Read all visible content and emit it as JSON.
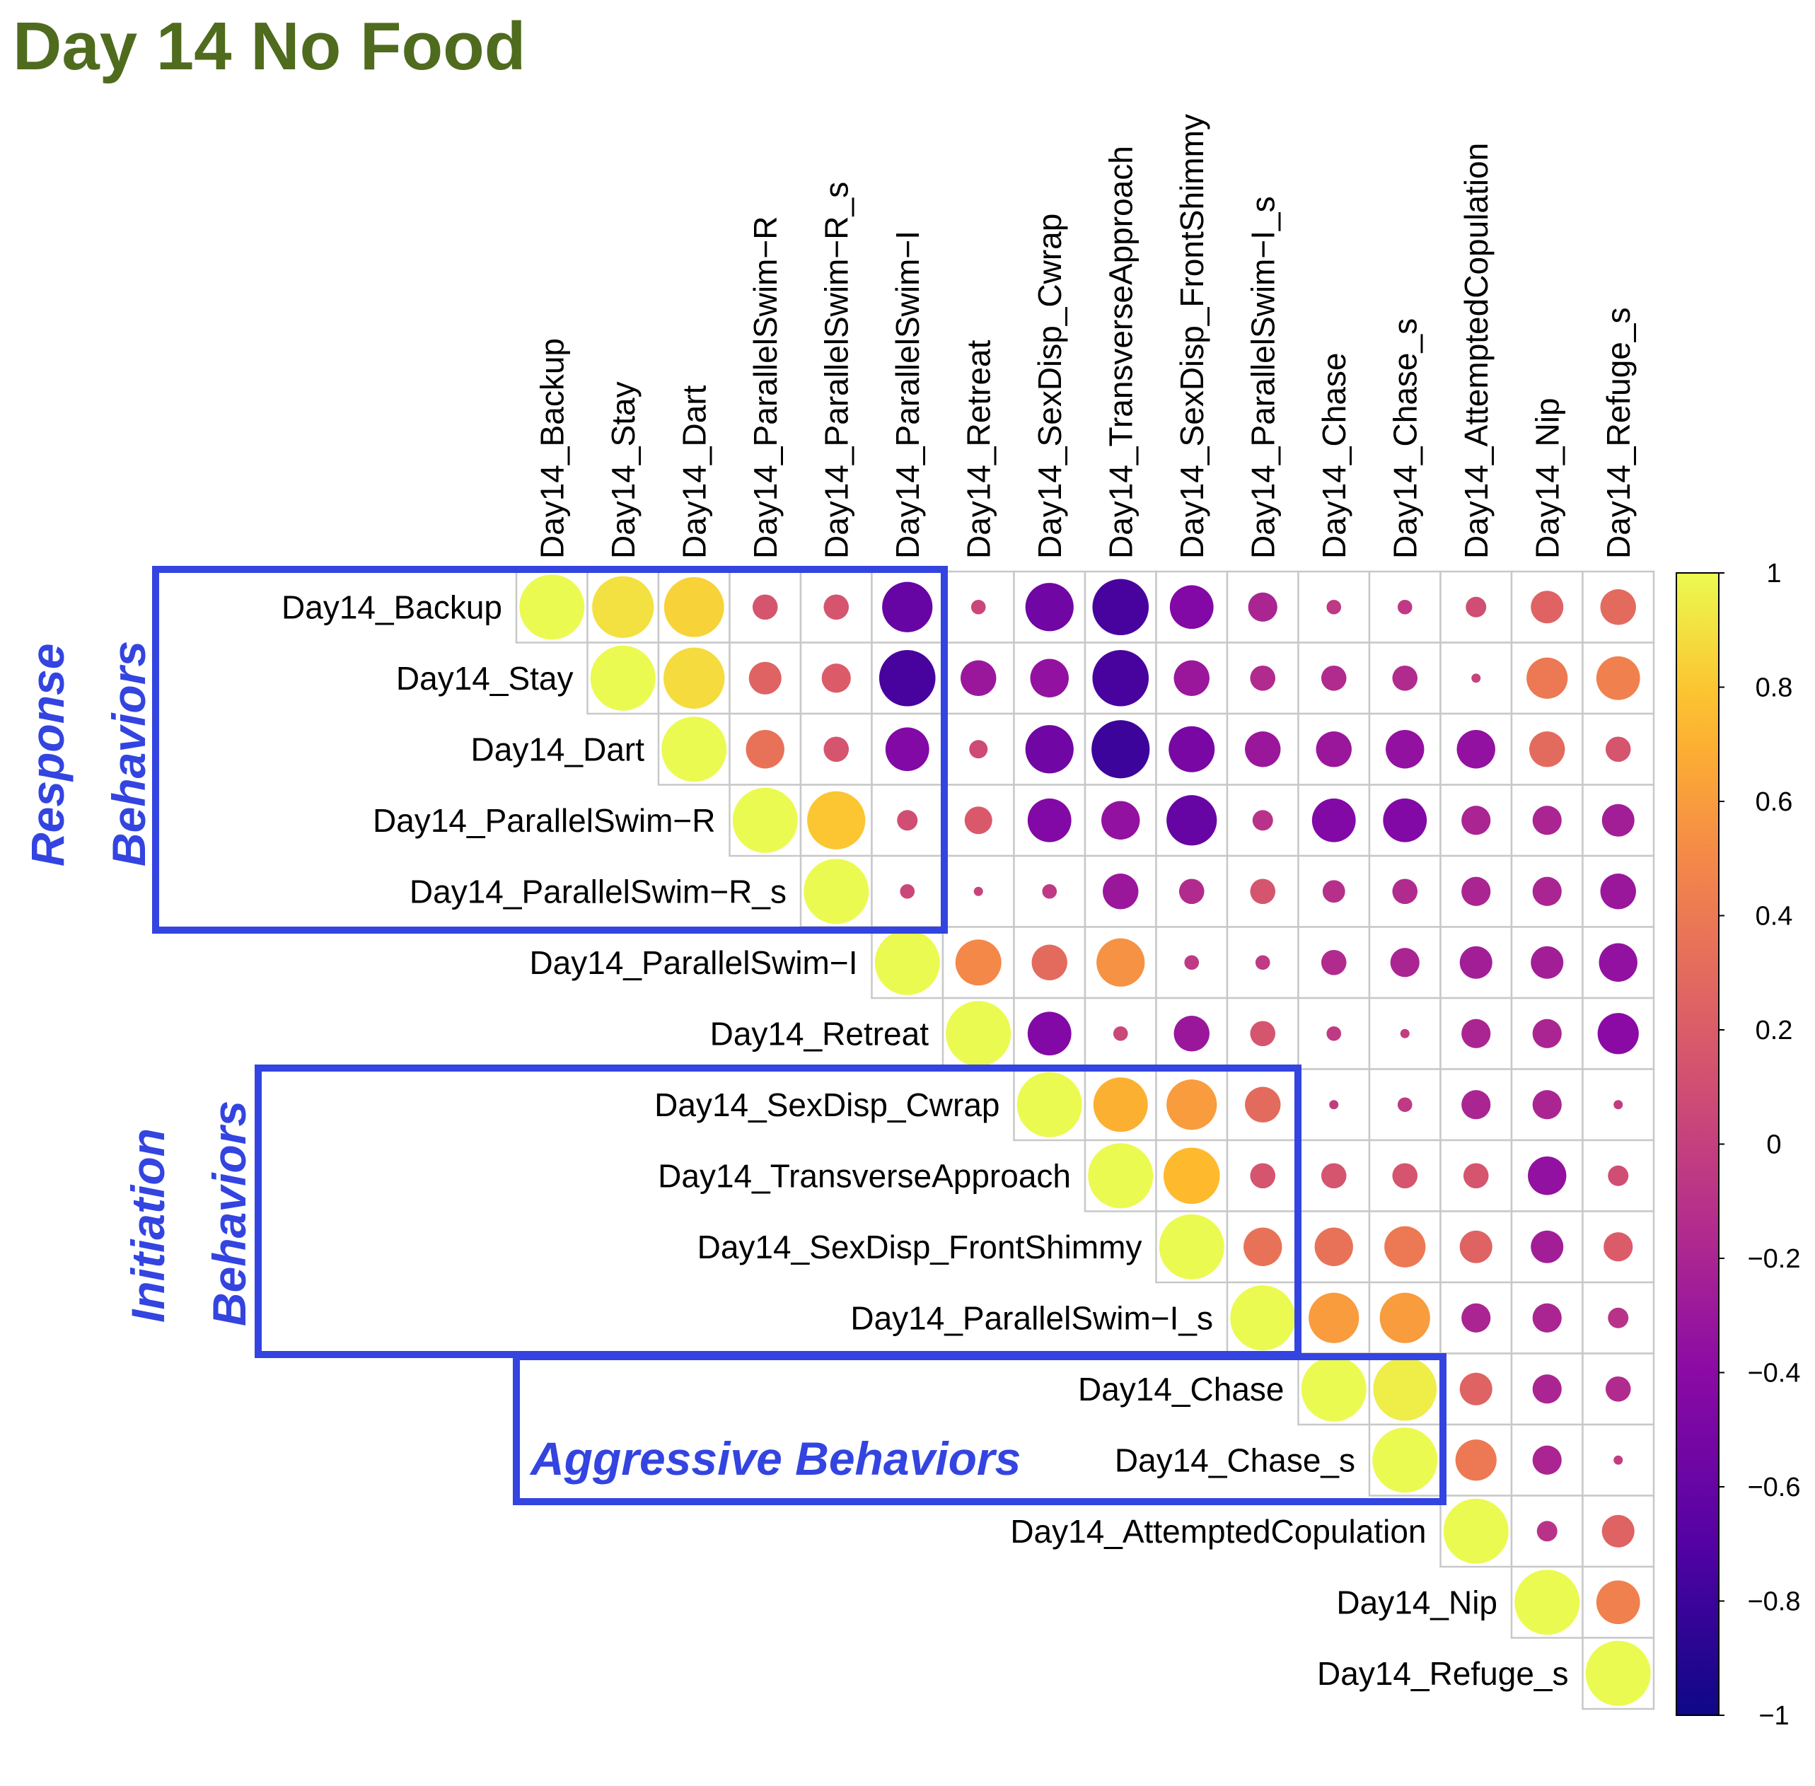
{
  "title": "Day 14 No Food",
  "chart_data": {
    "type": "heatmap",
    "subtype": "corrplot-upper-circles",
    "variables": [
      "Day14_Backup",
      "Day14_Stay",
      "Day14_Dart",
      "Day14_ParallelSwim−R",
      "Day14_ParallelSwim−R_s",
      "Day14_ParallelSwim−I",
      "Day14_Retreat",
      "Day14_SexDisp_Cwrap",
      "Day14_TransverseApproach",
      "Day14_SexDisp_FrontShimmy",
      "Day14_ParallelSwim−I_s",
      "Day14_Chase",
      "Day14_Chase_s",
      "Day14_AttemptedCopulation",
      "Day14_Nip",
      "Day14_Refuge_s"
    ],
    "matrix": [
      [
        1,
        0.9,
        0.85,
        0.15,
        0.15,
        -0.6,
        0.05,
        -0.55,
        -0.75,
        -0.45,
        -0.2,
        -0.05,
        -0.05,
        0.1,
        0.25,
        0.3
      ],
      [
        null,
        1,
        0.88,
        0.25,
        0.2,
        -0.75,
        -0.3,
        -0.35,
        -0.75,
        -0.3,
        -0.15,
        -0.15,
        -0.15,
        0.02,
        0.4,
        0.45
      ],
      [
        null,
        null,
        1,
        0.35,
        0.15,
        -0.45,
        0.08,
        -0.55,
        -0.8,
        -0.5,
        -0.3,
        -0.3,
        -0.35,
        -0.35,
        0.3,
        0.15
      ],
      [
        null,
        null,
        null,
        1,
        0.8,
        0.1,
        0.18,
        -0.45,
        -0.35,
        -0.6,
        -0.1,
        -0.45,
        -0.45,
        -0.2,
        -0.2,
        -0.25
      ],
      [
        null,
        null,
        null,
        null,
        1,
        0.05,
        0.02,
        -0.05,
        -0.3,
        -0.15,
        0.15,
        -0.12,
        -0.15,
        -0.2,
        -0.2,
        -0.3
      ],
      [
        null,
        null,
        null,
        null,
        null,
        1,
        0.5,
        0.3,
        0.55,
        -0.05,
        -0.05,
        -0.15,
        -0.2,
        -0.25,
        -0.25,
        -0.35
      ],
      [
        null,
        null,
        null,
        null,
        null,
        null,
        1,
        -0.45,
        0.05,
        -0.3,
        0.15,
        -0.05,
        -0.02,
        -0.2,
        -0.2,
        -0.4
      ],
      [
        null,
        null,
        null,
        null,
        null,
        null,
        null,
        1,
        0.7,
        0.6,
        0.3,
        -0.02,
        -0.05,
        -0.2,
        -0.2,
        -0.02
      ],
      [
        null,
        null,
        null,
        null,
        null,
        null,
        null,
        null,
        1,
        0.75,
        0.15,
        0.15,
        0.15,
        0.15,
        -0.35,
        0.1
      ],
      [
        null,
        null,
        null,
        null,
        null,
        null,
        null,
        null,
        null,
        1,
        0.35,
        0.35,
        0.4,
        0.25,
        -0.25,
        0.2
      ],
      [
        null,
        null,
        null,
        null,
        null,
        null,
        null,
        null,
        null,
        null,
        1,
        0.6,
        0.6,
        -0.2,
        -0.2,
        -0.1
      ],
      [
        null,
        null,
        null,
        null,
        null,
        null,
        null,
        null,
        null,
        null,
        null,
        1,
        0.95,
        0.25,
        -0.2,
        -0.15
      ],
      [
        null,
        null,
        null,
        null,
        null,
        null,
        null,
        null,
        null,
        null,
        null,
        null,
        1,
        0.4,
        -0.2,
        -0.02
      ],
      [
        null,
        null,
        null,
        null,
        null,
        null,
        null,
        null,
        null,
        null,
        null,
        null,
        null,
        1,
        -0.1,
        0.25
      ],
      [
        null,
        null,
        null,
        null,
        null,
        null,
        null,
        null,
        null,
        null,
        null,
        null,
        null,
        null,
        1,
        0.45
      ],
      [
        null,
        null,
        null,
        null,
        null,
        null,
        null,
        null,
        null,
        null,
        null,
        null,
        null,
        null,
        null,
        1
      ]
    ],
    "colorbar": {
      "min": -1,
      "max": 1,
      "ticks": [
        "1",
        "0.8",
        "0.6",
        "0.4",
        "0.2",
        "0",
        "−0.2",
        "−0.4",
        "−0.6",
        "−0.8",
        "−1"
      ]
    },
    "colormap": "plasma",
    "groups": [
      {
        "label_lines": [
          "Response",
          "Behaviors"
        ]
      },
      {
        "label_lines": [
          "Initiation",
          "Behaviors"
        ]
      },
      {
        "label_lines": [
          "Aggressive Behaviors"
        ]
      }
    ],
    "group_color": "#3344e0"
  }
}
